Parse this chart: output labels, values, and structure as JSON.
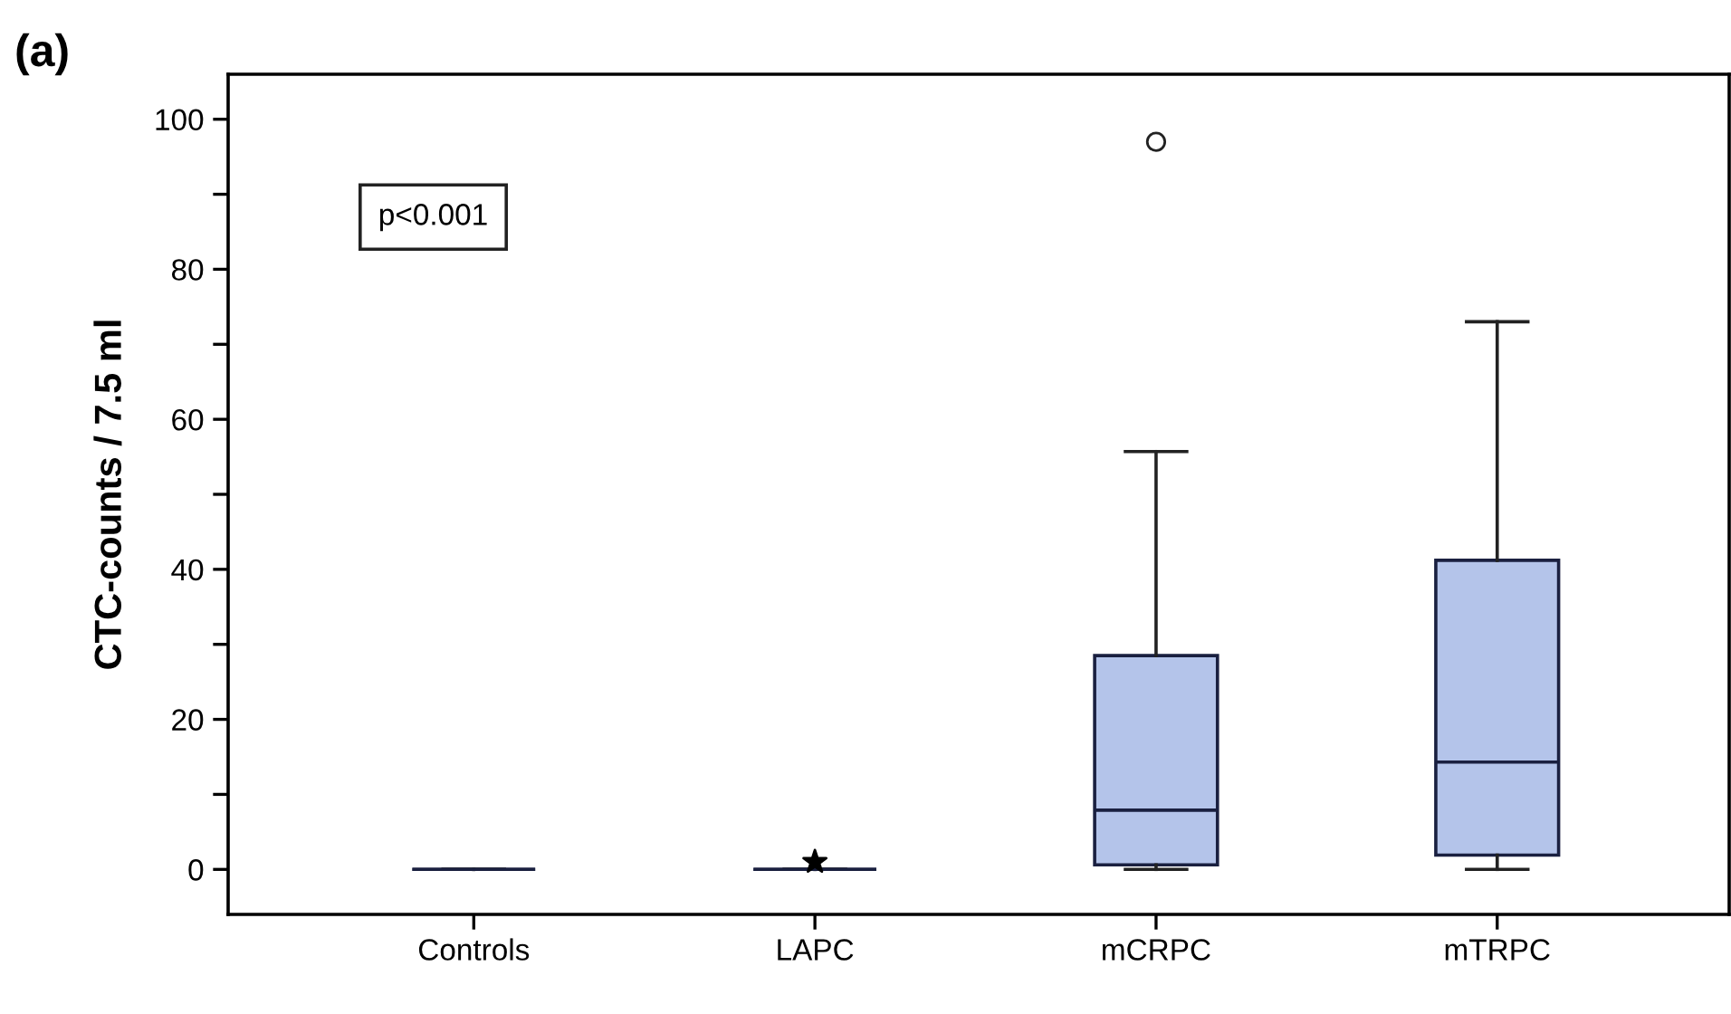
{
  "chart_data": {
    "type": "box",
    "title": "(a)",
    "ylabel": "CTC-counts / 7.5 ml",
    "categories": [
      "Controls",
      "LAPC",
      "mCRPC",
      "mTRPC"
    ],
    "colors": [
      "#1a2040",
      "#1a2040",
      "#b4c4ea",
      "#b4c4ea"
    ],
    "marker": "circle",
    "boxes": [
      {
        "low": 0,
        "q1": 0,
        "median": 0,
        "q3": 0,
        "high": 0
      },
      {
        "low": 0,
        "q1": 0,
        "median": 0,
        "q3": 0,
        "high": 0
      },
      {
        "low": 0,
        "q1": 0.6,
        "median": 7.9,
        "q3": 28.5,
        "high": 55.7,
        "outliers": [
          97
        ]
      },
      {
        "low": 0,
        "q1": 1.9,
        "median": 14.3,
        "q3": 41.2,
        "high": 73
      }
    ],
    "series": [
      {
        "type": "scatter",
        "x": [
          "LAPC"
        ],
        "values": [
          1
        ],
        "marker": "star",
        "color": "#000000"
      }
    ],
    "ylim": [
      -6,
      106
    ],
    "yticks": [
      0,
      {
        "value": 10,
        "label": null
      },
      20,
      {
        "value": 30,
        "label": null
      },
      40,
      {
        "value": 50,
        "label": null
      },
      60,
      {
        "value": 70,
        "label": null
      },
      80,
      {
        "value": 90,
        "label": null
      },
      100
    ],
    "annotations": [
      "p<0.001"
    ],
    "grid": false,
    "legend": false
  }
}
